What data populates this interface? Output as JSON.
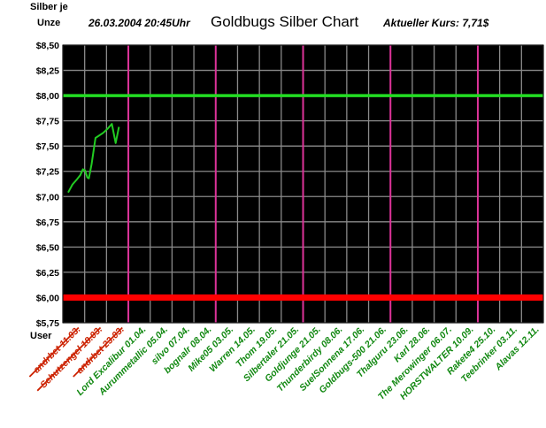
{
  "header": {
    "unit_line1": "Silber je",
    "unit_line2": "Unze",
    "timestamp": "26.03.2004  20:45Uhr",
    "title": "Goldbugs Silber Chart",
    "current_price": "Aktueller Kurs: 7,71$"
  },
  "chart_data": {
    "type": "line",
    "title": "Goldbugs Silber Chart",
    "ylabel": "Silber je Unze",
    "xlabel": "User",
    "ylim": [
      5.75,
      8.5
    ],
    "ytick_values": [
      5.75,
      6.0,
      6.25,
      6.5,
      6.75,
      7.0,
      7.25,
      7.5,
      7.75,
      8.0,
      8.25,
      8.5
    ],
    "ytick_labels": [
      "$5,75",
      "$6,00",
      "$6,25",
      "$6,50",
      "$6,75",
      "$7,00",
      "$7,25",
      "$7,50",
      "$7,75",
      "$8,00",
      "$8,25",
      "$8,50"
    ],
    "grid": true,
    "series": [
      {
        "color": "#22cc22",
        "x": [
          0.0,
          0.4,
          0.8,
          1.1,
          1.35,
          1.55,
          1.75,
          1.9,
          2.15,
          2.5,
          3.2,
          3.6,
          4.0,
          4.35,
          4.65
        ],
        "values": [
          7.04,
          7.12,
          7.17,
          7.21,
          7.27,
          7.26,
          7.19,
          7.18,
          7.32,
          7.58,
          7.63,
          7.67,
          7.72,
          7.53,
          7.69
        ]
      }
    ],
    "reference_lines": [
      {
        "value": 8.0,
        "color": "#22dd22"
      },
      {
        "value": 6.0,
        "color": "#ff0000"
      }
    ],
    "users": [
      {
        "label": "andrbet 11.03.",
        "color": "#cc2200",
        "struck": true
      },
      {
        "label": "Schutzengel 18.03.",
        "color": "#cc2200",
        "struck": true
      },
      {
        "label": "andrbet 23.03.",
        "color": "#cc2200",
        "struck": true
      },
      {
        "label": "Lord Excalibur 01.04.",
        "color": "#118811",
        "struck": false
      },
      {
        "label": "Aurummetallic 05.04.",
        "color": "#118811",
        "struck": false
      },
      {
        "label": "silvo 07.04.",
        "color": "#118811",
        "struck": false
      },
      {
        "label": "bognalr 08.04.",
        "color": "#118811",
        "struck": false
      },
      {
        "label": "Mike05 03.05.",
        "color": "#118811",
        "struck": false
      },
      {
        "label": "Warren 14.05.",
        "color": "#118811",
        "struck": false
      },
      {
        "label": "Thom 19.05.",
        "color": "#118811",
        "struck": false
      },
      {
        "label": "Silbertaler 21.05.",
        "color": "#118811",
        "struck": false
      },
      {
        "label": "Goldjunge 21.05.",
        "color": "#118811",
        "struck": false
      },
      {
        "label": "Thunderbirdy 08.06.",
        "color": "#118811",
        "struck": false
      },
      {
        "label": "SuelSonnena 17.06.",
        "color": "#118811",
        "struck": false
      },
      {
        "label": "Goldbugs-500 21.06.",
        "color": "#118811",
        "struck": false
      },
      {
        "label": "Thalguru 23.06.",
        "color": "#118811",
        "struck": false
      },
      {
        "label": "Karl 28.06.",
        "color": "#118811",
        "struck": false
      },
      {
        "label": "The Merowinger 06.07.",
        "color": "#118811",
        "struck": false
      },
      {
        "label": "HORSTWALTER 10.09.",
        "color": "#118811",
        "struck": false
      },
      {
        "label": "Rakete4 25.10.",
        "color": "#118811",
        "struck": false
      },
      {
        "label": "Teebrinker 03.11.",
        "color": "#118811",
        "struck": false
      },
      {
        "label": "Alavas 12.11.",
        "color": "#118811",
        "struck": false
      }
    ],
    "magenta_dividers_at_index": [
      3,
      7,
      11,
      15,
      19,
      22
    ]
  },
  "colors": {
    "plot_bg": "#000000",
    "grid": "#8a8a8a",
    "divider": "#dd3399",
    "axis_text": "#000000"
  }
}
